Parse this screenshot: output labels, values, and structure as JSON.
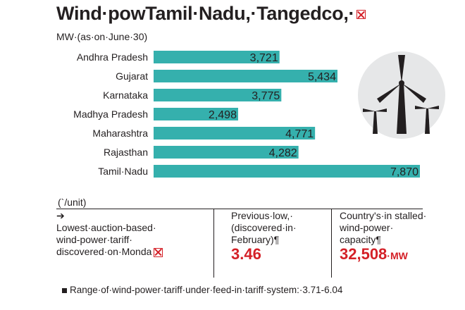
{
  "title": "Wind·powTamil·Nadu,·Tangedco,·",
  "subtitle": "MW·(as·on·June·30)",
  "chart_data": {
    "type": "bar",
    "orientation": "horizontal",
    "categories": [
      "Andhra Pradesh",
      "Gujarat",
      "Karnataka",
      "Madhya Pradesh",
      "Maharashtra",
      "Rajasthan",
      "Tamil·Nadu"
    ],
    "values": [
      3721,
      5434,
      3775,
      2498,
      4771,
      4282,
      7870
    ],
    "value_labels": [
      "3,721",
      "5,434",
      "3,775",
      "2,498",
      "4,771",
      "4,282",
      "7,870"
    ],
    "title": "Wind·powTamil·Nadu,·Tangedco,·",
    "subtitle": "MW·(as·on·June·30)",
    "xlim": [
      0,
      7870
    ],
    "grid": false,
    "bar_color": "#35b0ad"
  },
  "notes": {
    "unit_label": "(`/unit)",
    "arrow": "➔",
    "col1_text": [
      "Lowest·auction-based·",
      "wind-power·tariff·",
      "discovered·on·Monda"
    ],
    "col2_text": [
      "Previous·low,·",
      "(discovered·in·",
      "February)¶"
    ],
    "col2_value": "3.46",
    "col3_text": [
      "Country's·in stalled·",
      "wind-power·",
      "capacity¶"
    ],
    "col3_value": "32,508",
    "col3_unit": "·MW",
    "footnote": "Range·of·wind-power·tariff·under·feed-in·tariff·system:·3.71-6.04"
  },
  "colors": {
    "accent": "#d42027",
    "bar": "#35b0ad",
    "text": "#231f20"
  },
  "icons": {
    "title_mark": "broken-image-icon",
    "turbine": "wind-turbine-icon"
  }
}
